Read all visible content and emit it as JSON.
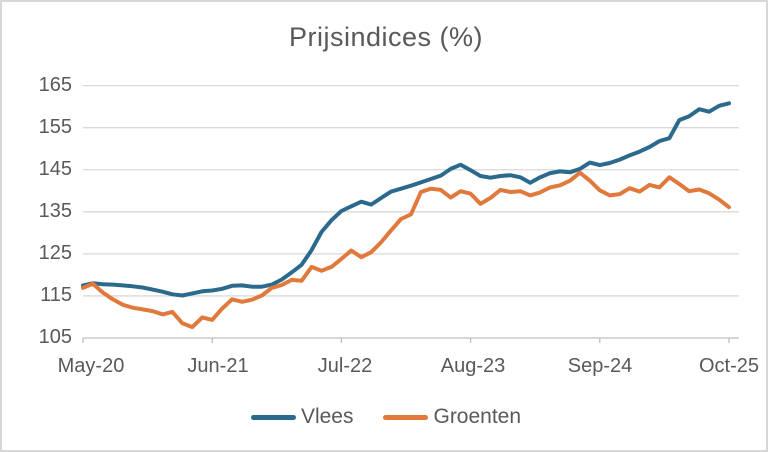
{
  "title": "Prijsindices (%)",
  "colors": {
    "vlees": "#2b6a8c",
    "groenten": "#e0793b",
    "text": "#595959",
    "gridline": "#d9d9d9",
    "axis": "#bfbfbf",
    "background": "#ffffff",
    "frame_border": "#d7d7d7"
  },
  "chart_data": {
    "type": "line",
    "title": "Prijsindices (%)",
    "xlabel": "",
    "ylabel": "",
    "ylim": [
      105,
      165
    ],
    "y_ticks": [
      165,
      155,
      145,
      135,
      125,
      115,
      105
    ],
    "x_tick_labels": [
      "May-20",
      "Jun-21",
      "Jul-22",
      "Aug-23",
      "Sep-24",
      "Oct-25"
    ],
    "grid": "horizontal",
    "legend_position": "bottom",
    "categories": [
      "May-20",
      "Jun-20",
      "Jul-20",
      "Aug-20",
      "Sep-20",
      "Oct-20",
      "Nov-20",
      "Dec-20",
      "Jan-21",
      "Feb-21",
      "Mar-21",
      "Apr-21",
      "May-21",
      "Jun-21",
      "Jul-21",
      "Aug-21",
      "Sep-21",
      "Oct-21",
      "Nov-21",
      "Dec-21",
      "Jan-22",
      "Feb-22",
      "Mar-22",
      "Apr-22",
      "May-22",
      "Jun-22",
      "Jul-22",
      "Aug-22",
      "Sep-22",
      "Oct-22",
      "Nov-22",
      "Dec-22",
      "Jan-23",
      "Feb-23",
      "Mar-23",
      "Apr-23",
      "May-23",
      "Jun-23",
      "Jul-23",
      "Aug-23",
      "Sep-23",
      "Oct-23",
      "Nov-23",
      "Dec-23",
      "Jan-24",
      "Feb-24",
      "Mar-24",
      "Apr-24",
      "May-24",
      "Jun-24",
      "Jul-24",
      "Aug-24",
      "Sep-24",
      "Oct-24",
      "Nov-24",
      "Dec-24",
      "Jan-25",
      "Feb-25",
      "Mar-25",
      "Apr-25",
      "May-25",
      "Jun-25",
      "Jul-25",
      "Aug-25",
      "Sep-25",
      "Oct-25"
    ],
    "series": [
      {
        "name": "Vlees",
        "color": "#2b6a8c",
        "values": [
          117.5,
          118.0,
          117.8,
          117.7,
          117.5,
          117.3,
          117.0,
          116.5,
          116.0,
          115.4,
          115.1,
          115.6,
          116.1,
          116.3,
          116.7,
          117.4,
          117.5,
          117.2,
          117.2,
          117.7,
          118.9,
          120.6,
          122.4,
          125.9,
          130.2,
          133.0,
          135.2,
          136.3,
          137.4,
          136.7,
          138.3,
          139.8,
          140.5,
          141.2,
          142.0,
          142.8,
          143.6,
          145.2,
          146.2,
          144.9,
          143.5,
          143.1,
          143.5,
          143.7,
          143.2,
          141.9,
          143.2,
          144.2,
          144.6,
          144.4,
          145.2,
          146.7,
          146.1,
          146.6,
          147.4,
          148.4,
          149.3,
          150.4,
          151.8,
          152.5,
          156.8,
          157.7,
          159.4,
          158.8,
          160.2,
          160.8
        ]
      },
      {
        "name": "Groenten",
        "color": "#e0793b",
        "values": [
          116.9,
          117.9,
          115.8,
          114.2,
          112.9,
          112.2,
          111.8,
          111.4,
          110.6,
          111.2,
          108.5,
          107.6,
          109.9,
          109.3,
          112.0,
          114.2,
          113.6,
          114.1,
          115.1,
          116.9,
          117.6,
          118.8,
          118.6,
          121.9,
          121.0,
          121.9,
          123.8,
          125.8,
          124.2,
          125.4,
          127.8,
          130.6,
          133.3,
          134.4,
          139.7,
          140.5,
          140.2,
          138.4,
          139.9,
          139.3,
          136.9,
          138.3,
          140.2,
          139.7,
          139.9,
          138.9,
          139.6,
          140.8,
          141.3,
          142.4,
          144.3,
          142.4,
          140.1,
          138.9,
          139.2,
          140.6,
          139.8,
          141.4,
          140.8,
          143.2,
          141.6,
          139.9,
          140.3,
          139.4,
          137.9,
          136.1
        ]
      }
    ]
  }
}
